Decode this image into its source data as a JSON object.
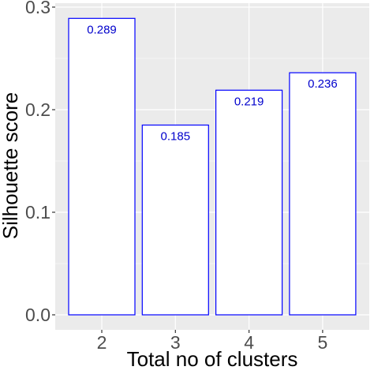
{
  "chart_data": {
    "type": "bar",
    "categories": [
      "2",
      "3",
      "4",
      "5"
    ],
    "values": [
      0.289,
      0.185,
      0.219,
      0.236
    ],
    "data_labels": [
      "0.289",
      "0.185",
      "0.219",
      "0.236"
    ],
    "title": "",
    "xlabel": "Total no of clusters",
    "ylabel": "Silhouette score",
    "ylim": [
      0,
      0.3
    ],
    "yticks": [
      0.0,
      0.1,
      0.2,
      0.3
    ],
    "ytick_labels": [
      "0.0",
      "0.1",
      "0.2",
      "0.3"
    ],
    "grid": true,
    "colors": {
      "panel_background": "#ebebeb",
      "grid": "#ffffff",
      "bar_fill": "#ffffff",
      "bar_outline": "#0000ff",
      "data_label": "#0000cc"
    }
  }
}
